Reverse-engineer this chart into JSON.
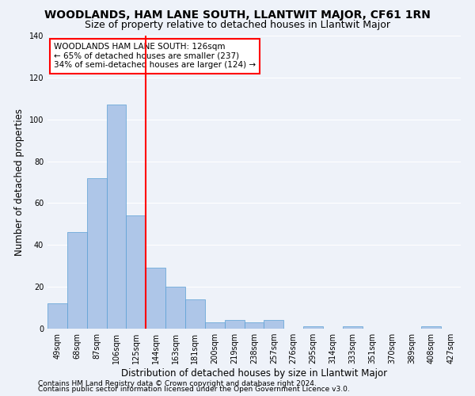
{
  "title": "WOODLANDS, HAM LANE SOUTH, LLANTWIT MAJOR, CF61 1RN",
  "subtitle": "Size of property relative to detached houses in Llantwit Major",
  "xlabel": "Distribution of detached houses by size in Llantwit Major",
  "ylabel": "Number of detached properties",
  "footer_line1": "Contains HM Land Registry data © Crown copyright and database right 2024.",
  "footer_line2": "Contains public sector information licensed under the Open Government Licence v3.0.",
  "bin_labels": [
    "49sqm",
    "68sqm",
    "87sqm",
    "106sqm",
    "125sqm",
    "144sqm",
    "163sqm",
    "181sqm",
    "200sqm",
    "219sqm",
    "238sqm",
    "257sqm",
    "276sqm",
    "295sqm",
    "314sqm",
    "333sqm",
    "351sqm",
    "370sqm",
    "389sqm",
    "408sqm",
    "427sqm"
  ],
  "bar_values": [
    12,
    46,
    72,
    107,
    54,
    29,
    20,
    14,
    3,
    4,
    3,
    4,
    0,
    1,
    0,
    1,
    0,
    0,
    0,
    1,
    0
  ],
  "bar_color": "#aec6e8",
  "bar_edge_color": "#5a9fd4",
  "vline_x": 4.5,
  "vline_color": "red",
  "annotation_text_line1": "WOODLANDS HAM LANE SOUTH: 126sqm",
  "annotation_text_line2": "← 65% of detached houses are smaller (237)",
  "annotation_text_line3": "34% of semi-detached houses are larger (124) →",
  "annotation_box_color": "white",
  "annotation_box_edgecolor": "red",
  "ylim": [
    0,
    140
  ],
  "yticks": [
    0,
    20,
    40,
    60,
    80,
    100,
    120,
    140
  ],
  "background_color": "#eef2f9",
  "plot_background": "#eef2f9",
  "grid_color": "white",
  "title_fontsize": 10,
  "subtitle_fontsize": 9,
  "xlabel_fontsize": 8.5,
  "ylabel_fontsize": 8.5,
  "tick_fontsize": 7,
  "annotation_fontsize": 7.5,
  "footer_fontsize": 6.5
}
